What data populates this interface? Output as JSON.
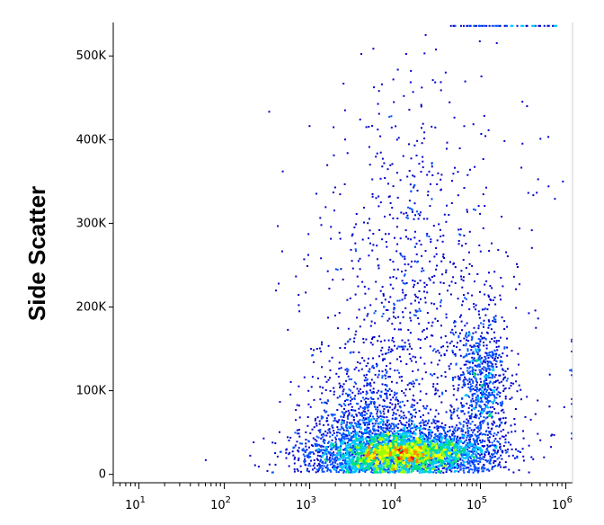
{
  "chart_data": {
    "type": "scatter",
    "title": "",
    "xlabel": "",
    "ylabel": "Side Scatter",
    "x_scale": "log",
    "xlim": [
      5,
      1200000
    ],
    "ylim": [
      -10000,
      540000
    ],
    "x_ticks": [
      {
        "value": 10,
        "base": "10",
        "exp": "1"
      },
      {
        "value": 100,
        "base": "10",
        "exp": "2"
      },
      {
        "value": 1000,
        "base": "10",
        "exp": "3"
      },
      {
        "value": 10000,
        "base": "10",
        "exp": "4"
      },
      {
        "value": 100000,
        "base": "10",
        "exp": "5"
      },
      {
        "value": 1000000,
        "base": "10",
        "exp": "6"
      }
    ],
    "y_ticks": [
      {
        "value": 0,
        "label": "0"
      },
      {
        "value": 100000,
        "label": "100K"
      },
      {
        "value": 200000,
        "label": "200K"
      },
      {
        "value": 300000,
        "label": "300K"
      },
      {
        "value": 400000,
        "label": "400K"
      },
      {
        "value": 500000,
        "label": "500K"
      }
    ],
    "colormap": [
      "#0000cc",
      "#0050ff",
      "#00c8ff",
      "#00e080",
      "#a0ff00",
      "#ffff00",
      "#ff8800",
      "#ff0000"
    ],
    "density_regions": [
      {
        "name": "main population",
        "x_center": 10000,
        "y_center": 25000,
        "x_log_spread": 0.55,
        "y_spread": 20000,
        "peak": "red"
      },
      {
        "name": "upper scatter",
        "x_center": 20000,
        "y_center": 150000,
        "x_log_spread": 0.7,
        "y_spread": 120000,
        "peak": "blue"
      },
      {
        "name": "right column",
        "x_center": 100000,
        "y_center": 110000,
        "x_log_spread": 0.15,
        "y_spread": 40000,
        "peak": "cyan"
      }
    ],
    "grid": false,
    "legend": "none"
  }
}
